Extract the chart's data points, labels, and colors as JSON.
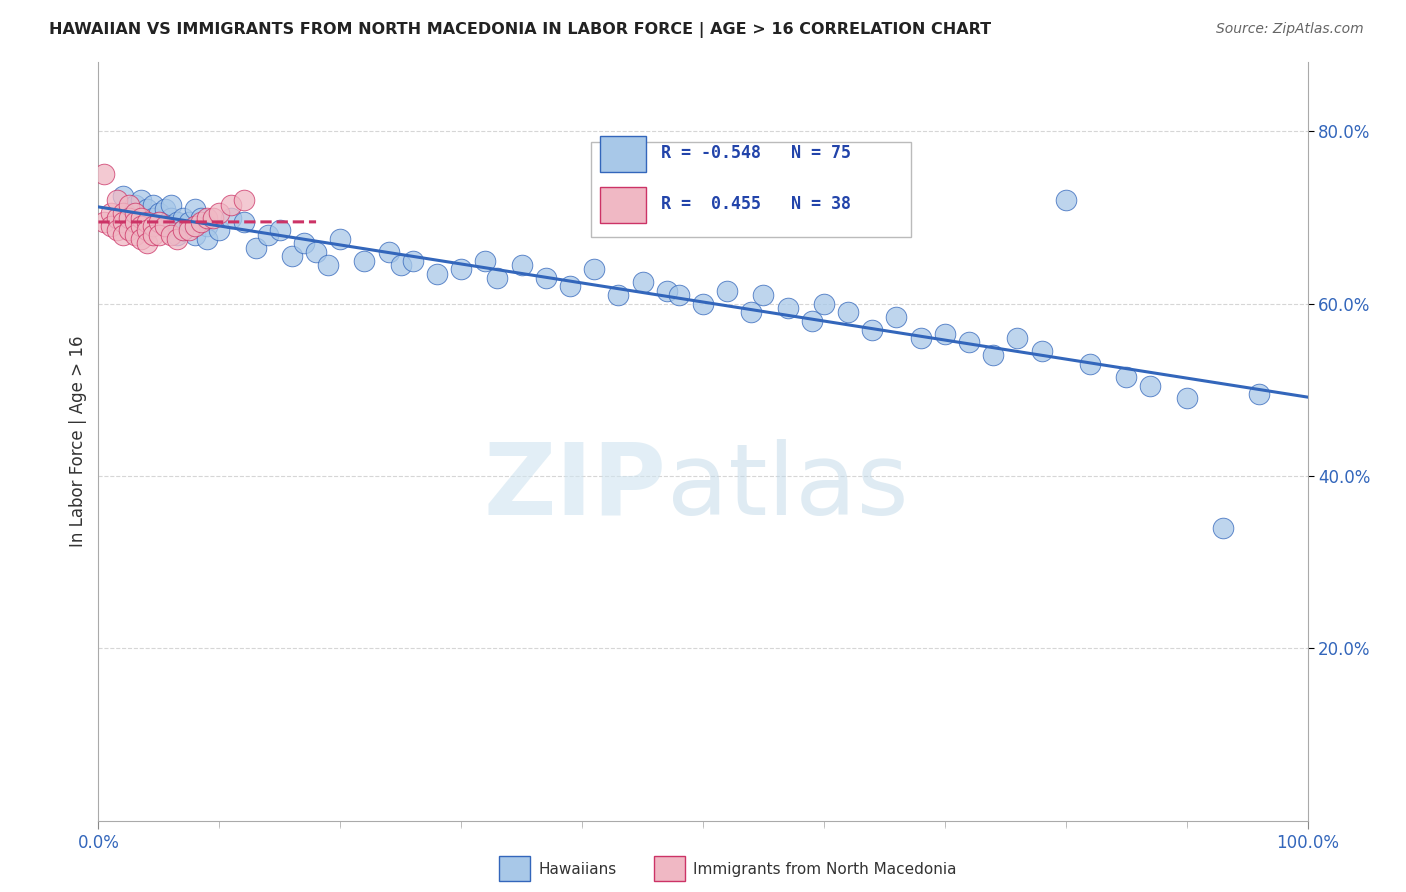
{
  "title": "HAWAIIAN VS IMMIGRANTS FROM NORTH MACEDONIA IN LABOR FORCE | AGE > 16 CORRELATION CHART",
  "source": "Source: ZipAtlas.com",
  "ylabel": "In Labor Force | Age > 16",
  "color_blue": "#a8c8e8",
  "color_pink": "#f0b8c4",
  "line_blue": "#3366bb",
  "line_pink": "#cc3366",
  "watermark_zip": "ZIP",
  "watermark_atlas": "atlas",
  "blue_x": [
    0.02,
    0.025,
    0.03,
    0.03,
    0.035,
    0.04,
    0.04,
    0.045,
    0.045,
    0.05,
    0.05,
    0.055,
    0.055,
    0.06,
    0.06,
    0.065,
    0.065,
    0.07,
    0.07,
    0.075,
    0.08,
    0.08,
    0.085,
    0.09,
    0.09,
    0.1,
    0.11,
    0.12,
    0.13,
    0.14,
    0.15,
    0.16,
    0.17,
    0.18,
    0.19,
    0.2,
    0.22,
    0.24,
    0.25,
    0.26,
    0.28,
    0.3,
    0.32,
    0.33,
    0.35,
    0.37,
    0.39,
    0.41,
    0.43,
    0.45,
    0.47,
    0.48,
    0.5,
    0.52,
    0.54,
    0.55,
    0.57,
    0.59,
    0.6,
    0.62,
    0.64,
    0.66,
    0.68,
    0.7,
    0.72,
    0.74,
    0.76,
    0.78,
    0.8,
    0.82,
    0.85,
    0.87,
    0.9,
    0.93,
    0.96
  ],
  "blue_y": [
    0.725,
    0.705,
    0.715,
    0.695,
    0.72,
    0.71,
    0.69,
    0.715,
    0.7,
    0.705,
    0.695,
    0.71,
    0.69,
    0.7,
    0.715,
    0.695,
    0.68,
    0.7,
    0.685,
    0.695,
    0.68,
    0.71,
    0.7,
    0.69,
    0.675,
    0.685,
    0.7,
    0.695,
    0.665,
    0.68,
    0.685,
    0.655,
    0.67,
    0.66,
    0.645,
    0.675,
    0.65,
    0.66,
    0.645,
    0.65,
    0.635,
    0.64,
    0.65,
    0.63,
    0.645,
    0.63,
    0.62,
    0.64,
    0.61,
    0.625,
    0.615,
    0.61,
    0.6,
    0.615,
    0.59,
    0.61,
    0.595,
    0.58,
    0.6,
    0.59,
    0.57,
    0.585,
    0.56,
    0.565,
    0.555,
    0.54,
    0.56,
    0.545,
    0.72,
    0.53,
    0.515,
    0.505,
    0.49,
    0.34,
    0.495
  ],
  "pink_x": [
    0.005,
    0.005,
    0.01,
    0.01,
    0.015,
    0.015,
    0.015,
    0.02,
    0.02,
    0.02,
    0.025,
    0.025,
    0.025,
    0.03,
    0.03,
    0.03,
    0.035,
    0.035,
    0.035,
    0.04,
    0.04,
    0.04,
    0.045,
    0.045,
    0.05,
    0.05,
    0.055,
    0.06,
    0.065,
    0.07,
    0.075,
    0.08,
    0.085,
    0.09,
    0.095,
    0.1,
    0.11,
    0.12
  ],
  "pink_y": [
    0.75,
    0.695,
    0.705,
    0.69,
    0.72,
    0.7,
    0.685,
    0.705,
    0.695,
    0.68,
    0.715,
    0.7,
    0.685,
    0.705,
    0.695,
    0.68,
    0.7,
    0.69,
    0.675,
    0.695,
    0.685,
    0.67,
    0.69,
    0.68,
    0.695,
    0.68,
    0.69,
    0.68,
    0.675,
    0.685,
    0.685,
    0.69,
    0.695,
    0.7,
    0.7,
    0.705,
    0.715,
    0.72
  ]
}
